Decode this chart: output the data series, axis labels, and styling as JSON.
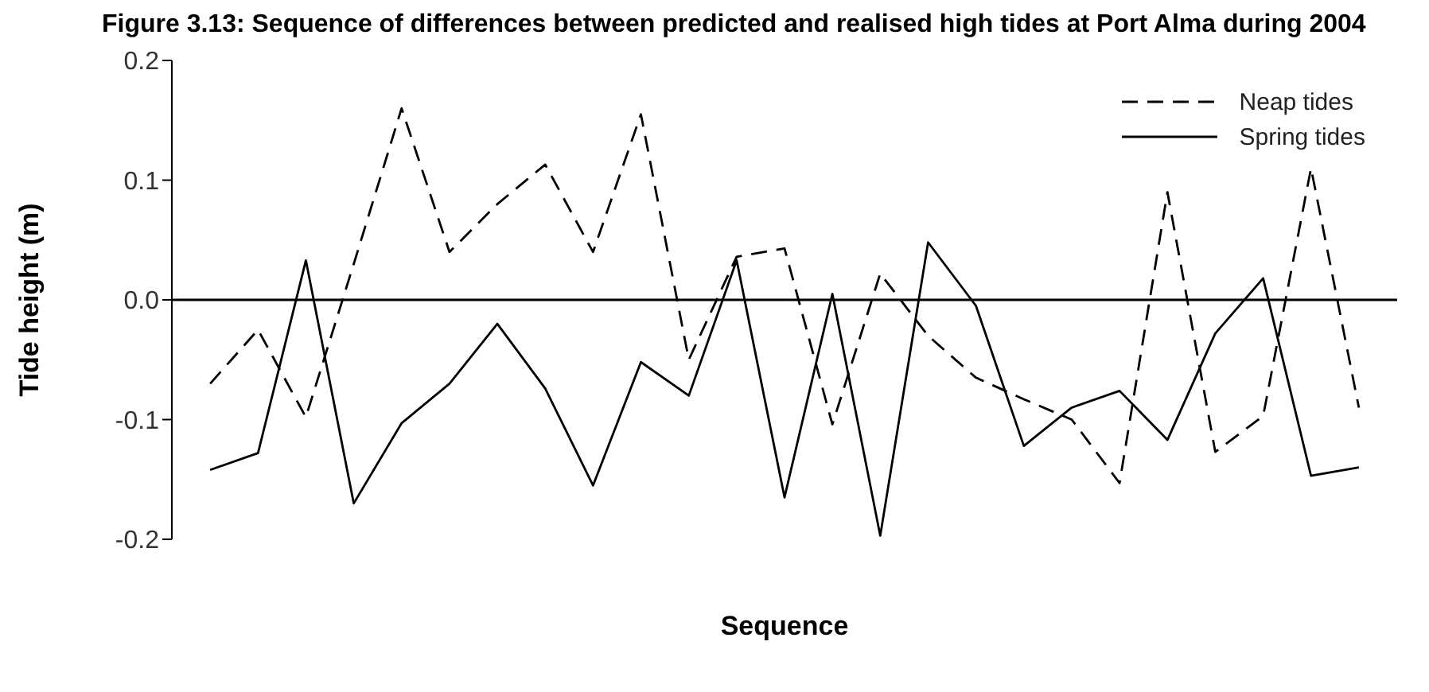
{
  "chart_data": {
    "type": "line",
    "title": "Figure 3.13: Sequence of differences between predicted and realised high tides at Port Alma during 2004",
    "xlabel": "Sequence",
    "ylabel": "Tide height (m)",
    "categories": [
      null,
      null,
      null,
      null,
      null,
      null,
      null,
      null,
      null,
      null,
      null,
      null,
      null,
      null,
      null,
      null,
      null,
      null,
      null,
      null,
      null,
      null,
      null,
      null,
      null
    ],
    "series": [
      {
        "name": "Neap tides",
        "color": "#000000",
        "line_style": "dashed",
        "values": [
          -0.07,
          -0.025,
          -0.098,
          0.03,
          0.16,
          0.04,
          0.08,
          0.113,
          0.04,
          0.155,
          -0.05,
          0.036,
          0.043,
          -0.104,
          0.022,
          -0.03,
          -0.065,
          -0.083,
          -0.1,
          -0.153,
          0.09,
          -0.127,
          -0.097,
          0.11,
          -0.09
        ]
      },
      {
        "name": "Spring tides",
        "color": "#000000",
        "line_style": "solid",
        "values": [
          -0.142,
          -0.128,
          0.033,
          -0.17,
          -0.103,
          -0.07,
          -0.02,
          -0.074,
          -0.155,
          -0.052,
          -0.08,
          0.033,
          -0.165,
          0.005,
          -0.197,
          0.048,
          -0.005,
          -0.122,
          -0.09,
          -0.076,
          -0.117,
          -0.028,
          0.018,
          -0.147,
          -0.14
        ]
      }
    ],
    "ylim": [
      -0.2,
      0.2
    ],
    "yticks": [
      0.2,
      0.1,
      {
        "value": 0,
        "label": "0.0"
      },
      -0.1,
      -0.2
    ],
    "ref_lines": [
      {
        "axis": "y",
        "value": 0,
        "color": "#000000"
      }
    ],
    "grid": false,
    "legend": "top right",
    "marker": "none"
  }
}
